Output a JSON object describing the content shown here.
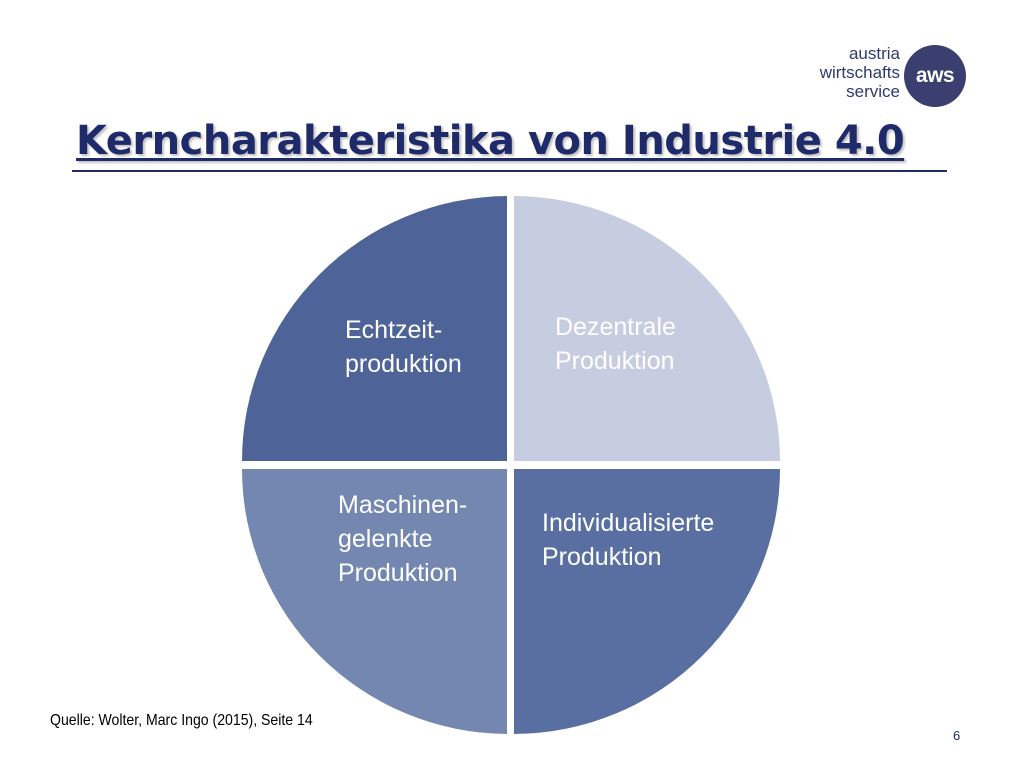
{
  "logo": {
    "lines": [
      "austria",
      "wirtschafts",
      "service"
    ],
    "mark": "aws",
    "color": "#3a3f6f"
  },
  "title": "Kerncharakteristika von Industrie 4.0",
  "diagram": {
    "quadrants": [
      {
        "id": "top-left",
        "label": "Echtzeit-\nproduktion",
        "color": "#4e6499"
      },
      {
        "id": "top-right",
        "label": "Dezentrale\nProduktion",
        "color": "#c7cde0"
      },
      {
        "id": "bottom-left",
        "label": "Maschinen-\ngelenkte\nProduktion",
        "color": "#7487b0"
      },
      {
        "id": "bottom-right",
        "label": "Individualisierte\nProduktion",
        "color": "#5a6fa1"
      }
    ]
  },
  "source": "Quelle: Wolter, Marc Ingo (2015), Seite 14",
  "page_number": "6"
}
